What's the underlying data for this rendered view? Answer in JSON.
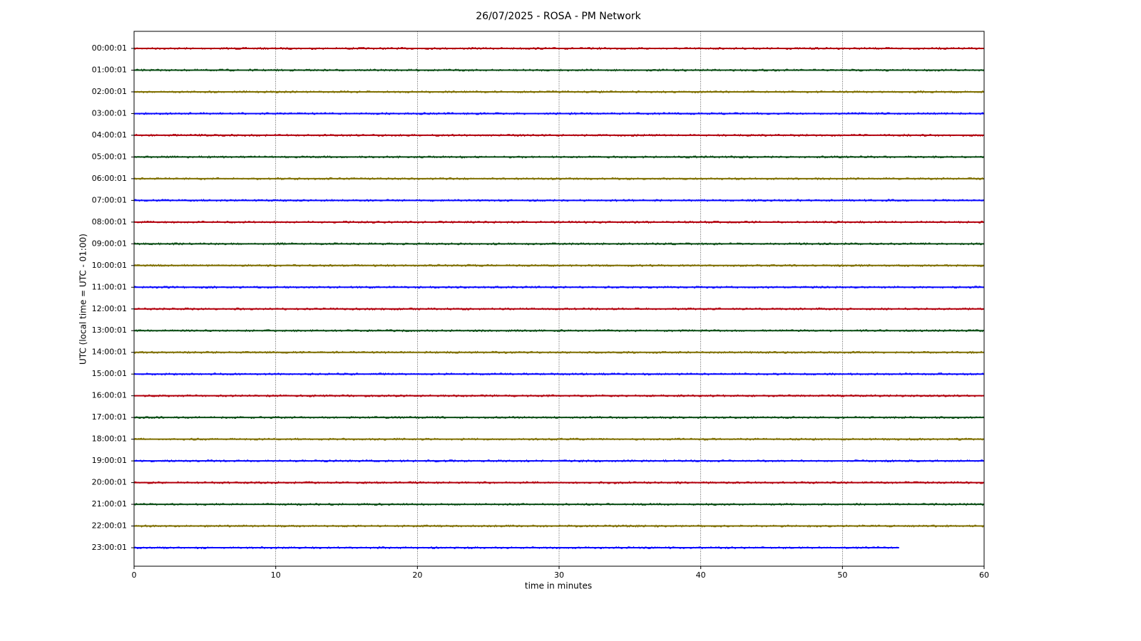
{
  "chart_data": {
    "type": "helicorder",
    "title": "26/07/2025 - ROSA - PM Network",
    "x_label": "time in minutes",
    "y_label": "UTC (local time = UTC - 01:00)",
    "xlim": [
      0,
      60
    ],
    "xticks": [
      0,
      10,
      20,
      30,
      40,
      50,
      60
    ],
    "grid": true,
    "series": [
      {
        "name": "00:00:01",
        "color": "#b2000d",
        "x": [
          0,
          60
        ]
      },
      {
        "name": "01:00:01",
        "color": "#0a4d14",
        "x": [
          0,
          60
        ]
      },
      {
        "name": "02:00:01",
        "color": "#7f6f00",
        "x": [
          0,
          60
        ]
      },
      {
        "name": "03:00:01",
        "color": "#0a0aff",
        "x": [
          0,
          60
        ]
      },
      {
        "name": "04:00:01",
        "color": "#b2000d",
        "x": [
          0,
          60
        ]
      },
      {
        "name": "05:00:01",
        "color": "#0a4d14",
        "x": [
          0,
          60
        ]
      },
      {
        "name": "06:00:01",
        "color": "#7f6f00",
        "x": [
          0,
          60
        ]
      },
      {
        "name": "07:00:01",
        "color": "#0a0aff",
        "x": [
          0,
          60
        ]
      },
      {
        "name": "08:00:01",
        "color": "#b2000d",
        "x": [
          0,
          60
        ]
      },
      {
        "name": "09:00:01",
        "color": "#0a4d14",
        "x": [
          0,
          60
        ]
      },
      {
        "name": "10:00:01",
        "color": "#7f6f00",
        "x": [
          0,
          60
        ]
      },
      {
        "name": "11:00:01",
        "color": "#0a0aff",
        "x": [
          0,
          60
        ]
      },
      {
        "name": "12:00:01",
        "color": "#b2000d",
        "x": [
          0,
          60
        ]
      },
      {
        "name": "13:00:01",
        "color": "#0a4d14",
        "x": [
          0,
          60
        ]
      },
      {
        "name": "14:00:01",
        "color": "#7f6f00",
        "x": [
          0,
          60
        ]
      },
      {
        "name": "15:00:01",
        "color": "#0a0aff",
        "x": [
          0,
          60
        ]
      },
      {
        "name": "16:00:01",
        "color": "#b2000d",
        "x": [
          0,
          60
        ]
      },
      {
        "name": "17:00:01",
        "color": "#0a4d14",
        "x": [
          0,
          60
        ]
      },
      {
        "name": "18:00:01",
        "color": "#7f6f00",
        "x": [
          0,
          60
        ]
      },
      {
        "name": "19:00:01",
        "color": "#0a0aff",
        "x": [
          0,
          60
        ]
      },
      {
        "name": "20:00:01",
        "color": "#b2000d",
        "x": [
          0,
          60
        ]
      },
      {
        "name": "21:00:01",
        "color": "#0a4d14",
        "x": [
          0,
          60
        ]
      },
      {
        "name": "22:00:01",
        "color": "#7f6f00",
        "x": [
          0,
          60
        ]
      },
      {
        "name": "23:00:01",
        "color": "#0a0aff",
        "x": [
          0,
          54
        ]
      }
    ]
  }
}
